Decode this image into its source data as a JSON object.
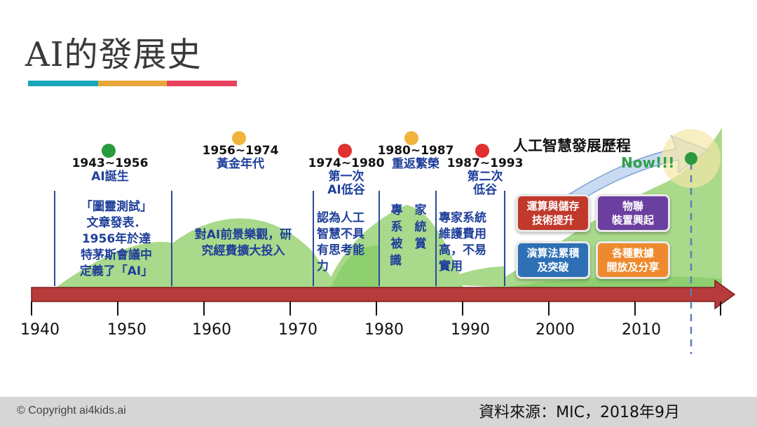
{
  "title": "AI的發展史",
  "accent_colors": [
    "#17a7b8",
    "#e8a63a",
    "#e8435d"
  ],
  "periods": [
    {
      "years": "1943~1956",
      "name": "AI誕生",
      "dot_color": "#2a9a3e",
      "desc": [
        "「圖靈測試」",
        "文章發表．",
        "1956年於達",
        "特茅斯會議中",
        "定義了「AI」"
      ]
    },
    {
      "years": "1956~1974",
      "name": "黃金年代",
      "dot_color": "#f0b43c",
      "desc": [
        "對AI前景樂觀，研",
        "究經費擴大投入"
      ]
    },
    {
      "years": "1974~1980",
      "name": "第一次\nAI低谷",
      "dot_color": "#e03030",
      "desc": [
        "認為人工",
        "智慧不具",
        "有思考能",
        "力"
      ]
    },
    {
      "years": "1980~1987",
      "name": "重返繁榮",
      "dot_color": "#f0b43c",
      "desc": [
        "專　家",
        "系　統",
        "被　賞",
        "識"
      ]
    },
    {
      "years": "1987~1993",
      "name": "第二次\n低谷",
      "dot_color": "#e03030",
      "desc": [
        "專家系統",
        "維護費用",
        "高，不易",
        "實用"
      ]
    }
  ],
  "history_label": "人工智慧發展歷程",
  "now_label": "Now!!!",
  "boxes": [
    {
      "text": "運算與儲存\n技術提升",
      "color": "#c0392b"
    },
    {
      "text": "物聯\n裝置興起",
      "color": "#6b3fa0"
    },
    {
      "text": "演算法累積\n及突破",
      "color": "#2e6fb5"
    },
    {
      "text": "各種數據\n開放及分享",
      "color": "#ee8a2e"
    }
  ],
  "axis_years": [
    "1940",
    "1950",
    "1960",
    "1970",
    "1980",
    "1990",
    "2000",
    "2010"
  ],
  "footer": {
    "copyright": "© Copyright ai4kids.ai",
    "source": "資料來源：MIC，2018年9月"
  }
}
